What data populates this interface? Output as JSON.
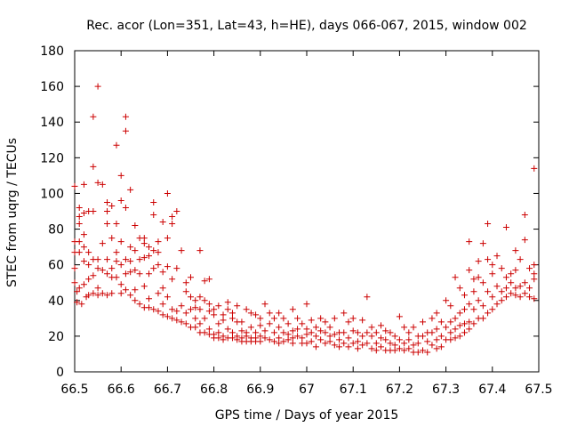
{
  "chart_data": {
    "type": "scatter",
    "title": "Rec. acor (Lon=351, Lat=43, h=HE), days 066-067, 2015, window 002",
    "xlabel": "GPS time / Days of year 2015",
    "ylabel": "STEC from uqrg / TECUs",
    "xlim": [
      66.5,
      67.5
    ],
    "ylim": [
      0,
      180
    ],
    "xticks": [
      66.5,
      66.6,
      66.7,
      66.8,
      66.9,
      67.0,
      67.1,
      67.2,
      67.3,
      67.4,
      67.5
    ],
    "xtick_labels": [
      "66.5",
      "66.6",
      "66.7",
      "66.8",
      "66.9",
      "67",
      "67.1",
      "67.2",
      "67.3",
      "67.4",
      "67.5"
    ],
    "yticks": [
      0,
      20,
      40,
      60,
      80,
      100,
      120,
      140,
      160,
      180
    ],
    "ytick_labels": [
      "0",
      "20",
      "40",
      "60",
      "80",
      "100",
      "120",
      "140",
      "160",
      "180"
    ],
    "marker": "+",
    "color": "#cc0000",
    "points": [
      [
        66.5,
        104
      ],
      [
        66.5,
        73
      ],
      [
        66.5,
        67
      ],
      [
        66.5,
        58
      ],
      [
        66.5,
        50
      ],
      [
        66.505,
        45
      ],
      [
        66.505,
        39
      ],
      [
        66.51,
        92
      ],
      [
        66.51,
        87
      ],
      [
        66.51,
        83
      ],
      [
        66.51,
        73
      ],
      [
        66.51,
        67
      ],
      [
        66.51,
        47
      ],
      [
        66.515,
        38
      ],
      [
        66.52,
        105
      ],
      [
        66.52,
        89
      ],
      [
        66.52,
        77
      ],
      [
        66.52,
        70
      ],
      [
        66.52,
        62
      ],
      [
        66.52,
        49
      ],
      [
        66.525,
        42
      ],
      [
        66.53,
        90
      ],
      [
        66.53,
        67
      ],
      [
        66.53,
        60
      ],
      [
        66.53,
        52
      ],
      [
        66.53,
        43
      ],
      [
        66.54,
        143
      ],
      [
        66.54,
        115
      ],
      [
        66.54,
        90
      ],
      [
        66.54,
        63
      ],
      [
        66.54,
        54
      ],
      [
        66.54,
        44
      ],
      [
        66.55,
        160
      ],
      [
        66.55,
        106
      ],
      [
        66.55,
        63
      ],
      [
        66.55,
        58
      ],
      [
        66.55,
        47
      ],
      [
        66.55,
        43
      ],
      [
        66.56,
        105
      ],
      [
        66.56,
        72
      ],
      [
        66.56,
        57
      ],
      [
        66.56,
        44
      ],
      [
        66.57,
        95
      ],
      [
        66.57,
        90
      ],
      [
        66.57,
        83
      ],
      [
        66.57,
        63
      ],
      [
        66.57,
        55
      ],
      [
        66.57,
        43
      ],
      [
        66.58,
        93
      ],
      [
        66.58,
        75
      ],
      [
        66.58,
        58
      ],
      [
        66.58,
        53
      ],
      [
        66.58,
        44
      ],
      [
        66.59,
        127
      ],
      [
        66.59,
        83
      ],
      [
        66.59,
        67
      ],
      [
        66.59,
        62
      ],
      [
        66.59,
        53
      ],
      [
        66.6,
        110
      ],
      [
        66.6,
        96
      ],
      [
        66.6,
        73
      ],
      [
        66.6,
        60
      ],
      [
        66.6,
        49
      ],
      [
        66.6,
        44
      ],
      [
        66.61,
        143
      ],
      [
        66.61,
        135
      ],
      [
        66.61,
        92
      ],
      [
        66.61,
        63
      ],
      [
        66.61,
        55
      ],
      [
        66.61,
        46
      ],
      [
        66.62,
        102
      ],
      [
        66.62,
        70
      ],
      [
        66.62,
        62
      ],
      [
        66.62,
        56
      ],
      [
        66.62,
        43
      ],
      [
        66.63,
        82
      ],
      [
        66.63,
        68
      ],
      [
        66.63,
        57
      ],
      [
        66.63,
        46
      ],
      [
        66.63,
        40
      ],
      [
        66.64,
        75
      ],
      [
        66.64,
        63
      ],
      [
        66.64,
        55
      ],
      [
        66.64,
        38
      ],
      [
        66.65,
        75
      ],
      [
        66.65,
        72
      ],
      [
        66.65,
        64
      ],
      [
        66.65,
        48
      ],
      [
        66.65,
        36
      ],
      [
        66.66,
        70
      ],
      [
        66.66,
        65
      ],
      [
        66.66,
        55
      ],
      [
        66.66,
        41
      ],
      [
        66.66,
        36
      ],
      [
        66.67,
        95
      ],
      [
        66.67,
        88
      ],
      [
        66.67,
        68
      ],
      [
        66.67,
        58
      ],
      [
        66.67,
        35
      ],
      [
        66.68,
        73
      ],
      [
        66.68,
        67
      ],
      [
        66.68,
        60
      ],
      [
        66.68,
        44
      ],
      [
        66.68,
        34
      ],
      [
        66.69,
        84
      ],
      [
        66.69,
        56
      ],
      [
        66.69,
        47
      ],
      [
        66.69,
        38
      ],
      [
        66.69,
        32
      ],
      [
        66.7,
        100
      ],
      [
        66.7,
        75
      ],
      [
        66.7,
        59
      ],
      [
        66.7,
        42
      ],
      [
        66.7,
        31
      ],
      [
        66.71,
        87
      ],
      [
        66.71,
        83
      ],
      [
        66.71,
        52
      ],
      [
        66.71,
        35
      ],
      [
        66.71,
        30
      ],
      [
        66.72,
        90
      ],
      [
        66.72,
        58
      ],
      [
        66.72,
        34
      ],
      [
        66.72,
        29
      ],
      [
        66.73,
        68
      ],
      [
        66.73,
        37
      ],
      [
        66.73,
        28
      ],
      [
        66.74,
        50
      ],
      [
        66.74,
        45
      ],
      [
        66.74,
        33
      ],
      [
        66.74,
        27
      ],
      [
        66.75,
        53
      ],
      [
        66.75,
        42
      ],
      [
        66.75,
        35
      ],
      [
        66.75,
        25
      ],
      [
        66.76,
        40
      ],
      [
        66.76,
        36
      ],
      [
        66.76,
        30
      ],
      [
        66.76,
        25
      ],
      [
        66.77,
        68
      ],
      [
        66.77,
        42
      ],
      [
        66.77,
        35
      ],
      [
        66.77,
        27
      ],
      [
        66.77,
        22
      ],
      [
        66.78,
        51
      ],
      [
        66.78,
        40
      ],
      [
        66.78,
        30
      ],
      [
        66.78,
        22
      ],
      [
        66.79,
        52
      ],
      [
        66.79,
        38
      ],
      [
        66.79,
        34
      ],
      [
        66.79,
        24
      ],
      [
        66.79,
        21
      ],
      [
        66.8,
        35
      ],
      [
        66.8,
        32
      ],
      [
        66.8,
        21
      ],
      [
        66.8,
        19
      ],
      [
        66.81,
        37
      ],
      [
        66.81,
        27
      ],
      [
        66.81,
        22
      ],
      [
        66.81,
        19
      ],
      [
        66.82,
        32
      ],
      [
        66.82,
        29
      ],
      [
        66.82,
        20
      ],
      [
        66.82,
        18
      ],
      [
        66.83,
        39
      ],
      [
        66.83,
        35
      ],
      [
        66.83,
        24
      ],
      [
        66.83,
        19
      ],
      [
        66.84,
        33
      ],
      [
        66.84,
        30
      ],
      [
        66.84,
        22
      ],
      [
        66.84,
        19
      ],
      [
        66.85,
        37
      ],
      [
        66.85,
        28
      ],
      [
        66.85,
        20
      ],
      [
        66.85,
        18
      ],
      [
        66.86,
        28
      ],
      [
        66.86,
        23
      ],
      [
        66.86,
        19
      ],
      [
        66.86,
        17
      ],
      [
        66.87,
        35
      ],
      [
        66.87,
        22
      ],
      [
        66.87,
        20
      ],
      [
        66.87,
        17
      ],
      [
        66.88,
        33
      ],
      [
        66.88,
        25
      ],
      [
        66.88,
        19
      ],
      [
        66.88,
        17
      ],
      [
        66.89,
        32
      ],
      [
        66.89,
        22
      ],
      [
        66.89,
        19
      ],
      [
        66.89,
        17
      ],
      [
        66.9,
        30
      ],
      [
        66.9,
        26
      ],
      [
        66.9,
        20
      ],
      [
        66.9,
        17
      ],
      [
        66.91,
        38
      ],
      [
        66.91,
        23
      ],
      [
        66.91,
        19
      ],
      [
        66.92,
        33
      ],
      [
        66.92,
        27
      ],
      [
        66.92,
        18
      ],
      [
        66.93,
        30
      ],
      [
        66.93,
        22
      ],
      [
        66.93,
        17
      ],
      [
        66.94,
        33
      ],
      [
        66.94,
        25
      ],
      [
        66.94,
        19
      ],
      [
        66.94,
        16
      ],
      [
        66.95,
        30
      ],
      [
        66.95,
        22
      ],
      [
        66.95,
        17
      ],
      [
        66.96,
        27
      ],
      [
        66.96,
        21
      ],
      [
        66.96,
        18
      ],
      [
        66.97,
        35
      ],
      [
        66.97,
        23
      ],
      [
        66.97,
        19
      ],
      [
        66.97,
        16
      ],
      [
        66.98,
        30
      ],
      [
        66.98,
        24
      ],
      [
        66.98,
        20
      ],
      [
        66.99,
        27
      ],
      [
        66.99,
        19
      ],
      [
        66.99,
        16
      ],
      [
        67.0,
        38
      ],
      [
        67.0,
        24
      ],
      [
        67.0,
        21
      ],
      [
        67.0,
        16
      ],
      [
        67.01,
        29
      ],
      [
        67.01,
        22
      ],
      [
        67.01,
        17
      ],
      [
        67.02,
        25
      ],
      [
        67.02,
        20
      ],
      [
        67.02,
        14
      ],
      [
        67.03,
        30
      ],
      [
        67.03,
        23
      ],
      [
        67.03,
        18
      ],
      [
        67.04,
        28
      ],
      [
        67.04,
        22
      ],
      [
        67.04,
        16
      ],
      [
        67.05,
        25
      ],
      [
        67.05,
        20
      ],
      [
        67.05,
        17
      ],
      [
        67.06,
        30
      ],
      [
        67.06,
        21
      ],
      [
        67.06,
        15
      ],
      [
        67.07,
        22
      ],
      [
        67.07,
        18
      ],
      [
        67.07,
        14
      ],
      [
        67.08,
        33
      ],
      [
        67.08,
        22
      ],
      [
        67.08,
        16
      ],
      [
        67.09,
        28
      ],
      [
        67.09,
        19
      ],
      [
        67.09,
        14
      ],
      [
        67.1,
        30
      ],
      [
        67.1,
        23
      ],
      [
        67.1,
        16
      ],
      [
        67.11,
        22
      ],
      [
        67.11,
        17
      ],
      [
        67.11,
        13
      ],
      [
        67.12,
        29
      ],
      [
        67.12,
        20
      ],
      [
        67.12,
        15
      ],
      [
        67.13,
        42
      ],
      [
        67.13,
        22
      ],
      [
        67.13,
        16
      ],
      [
        67.14,
        25
      ],
      [
        67.14,
        20
      ],
      [
        67.14,
        13
      ],
      [
        67.15,
        22
      ],
      [
        67.15,
        16
      ],
      [
        67.15,
        12
      ],
      [
        67.16,
        26
      ],
      [
        67.16,
        19
      ],
      [
        67.16,
        14
      ],
      [
        67.17,
        23
      ],
      [
        67.17,
        18
      ],
      [
        67.17,
        12
      ],
      [
        67.18,
        22
      ],
      [
        67.18,
        16
      ],
      [
        67.18,
        12
      ],
      [
        67.19,
        20
      ],
      [
        67.19,
        15
      ],
      [
        67.19,
        12
      ],
      [
        67.2,
        31
      ],
      [
        67.2,
        18
      ],
      [
        67.2,
        13
      ],
      [
        67.21,
        25
      ],
      [
        67.21,
        16
      ],
      [
        67.21,
        12
      ],
      [
        67.22,
        22
      ],
      [
        67.22,
        18
      ],
      [
        67.22,
        13
      ],
      [
        67.23,
        25
      ],
      [
        67.23,
        15
      ],
      [
        67.23,
        11
      ],
      [
        67.24,
        20
      ],
      [
        67.24,
        16
      ],
      [
        67.24,
        11
      ],
      [
        67.25,
        28
      ],
      [
        67.25,
        20
      ],
      [
        67.25,
        12
      ],
      [
        67.26,
        22
      ],
      [
        67.26,
        17
      ],
      [
        67.26,
        11
      ],
      [
        67.27,
        30
      ],
      [
        67.27,
        22
      ],
      [
        67.27,
        15
      ],
      [
        67.28,
        33
      ],
      [
        67.28,
        24
      ],
      [
        67.28,
        18
      ],
      [
        67.28,
        13
      ],
      [
        67.29,
        28
      ],
      [
        67.29,
        20
      ],
      [
        67.29,
        14
      ],
      [
        67.3,
        40
      ],
      [
        67.3,
        25
      ],
      [
        67.3,
        18
      ],
      [
        67.31,
        37
      ],
      [
        67.31,
        28
      ],
      [
        67.31,
        22
      ],
      [
        67.31,
        18
      ],
      [
        67.32,
        53
      ],
      [
        67.32,
        30
      ],
      [
        67.32,
        24
      ],
      [
        67.32,
        19
      ],
      [
        67.33,
        47
      ],
      [
        67.33,
        33
      ],
      [
        67.33,
        26
      ],
      [
        67.33,
        20
      ],
      [
        67.34,
        43
      ],
      [
        67.34,
        35
      ],
      [
        67.34,
        27
      ],
      [
        67.34,
        22
      ],
      [
        67.35,
        73
      ],
      [
        67.35,
        57
      ],
      [
        67.35,
        38
      ],
      [
        67.35,
        28
      ],
      [
        67.35,
        24
      ],
      [
        67.36,
        52
      ],
      [
        67.36,
        45
      ],
      [
        67.36,
        35
      ],
      [
        67.36,
        27
      ],
      [
        67.37,
        62
      ],
      [
        67.37,
        53
      ],
      [
        67.37,
        40
      ],
      [
        67.37,
        30
      ],
      [
        67.38,
        72
      ],
      [
        67.38,
        50
      ],
      [
        67.38,
        37
      ],
      [
        67.38,
        30
      ],
      [
        67.39,
        83
      ],
      [
        67.39,
        63
      ],
      [
        67.39,
        45
      ],
      [
        67.39,
        33
      ],
      [
        67.4,
        60
      ],
      [
        67.4,
        55
      ],
      [
        67.4,
        42
      ],
      [
        67.4,
        35
      ],
      [
        67.41,
        65
      ],
      [
        67.41,
        48
      ],
      [
        67.41,
        38
      ],
      [
        67.42,
        58
      ],
      [
        67.42,
        45
      ],
      [
        67.42,
        40
      ],
      [
        67.43,
        81
      ],
      [
        67.43,
        53
      ],
      [
        67.43,
        47
      ],
      [
        67.43,
        42
      ],
      [
        67.44,
        55
      ],
      [
        67.44,
        50
      ],
      [
        67.44,
        44
      ],
      [
        67.45,
        68
      ],
      [
        67.45,
        57
      ],
      [
        67.45,
        47
      ],
      [
        67.45,
        43
      ],
      [
        67.46,
        63
      ],
      [
        67.46,
        48
      ],
      [
        67.46,
        42
      ],
      [
        67.47,
        88
      ],
      [
        67.47,
        74
      ],
      [
        67.47,
        50
      ],
      [
        67.47,
        44
      ],
      [
        67.48,
        58
      ],
      [
        67.48,
        47
      ],
      [
        67.48,
        42
      ],
      [
        67.49,
        114
      ],
      [
        67.49,
        60
      ],
      [
        67.49,
        55
      ],
      [
        67.49,
        52
      ],
      [
        67.49,
        41
      ]
    ]
  }
}
